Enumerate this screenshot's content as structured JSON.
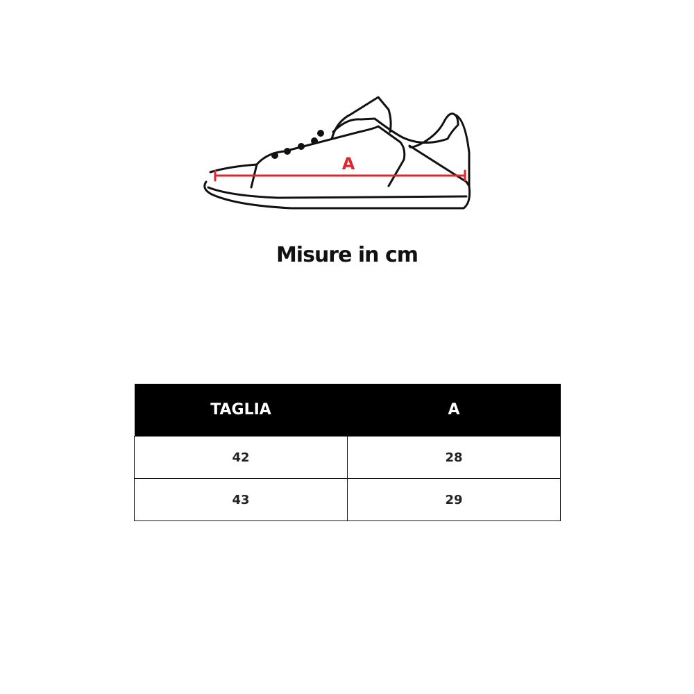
{
  "diagram": {
    "measure_label": "A",
    "measure_color": "#e0262b"
  },
  "title": "Misure in cm",
  "table": {
    "headers": [
      "TAGLIA",
      "A"
    ],
    "rows": [
      [
        "42",
        "28"
      ],
      [
        "43",
        "29"
      ]
    ]
  }
}
